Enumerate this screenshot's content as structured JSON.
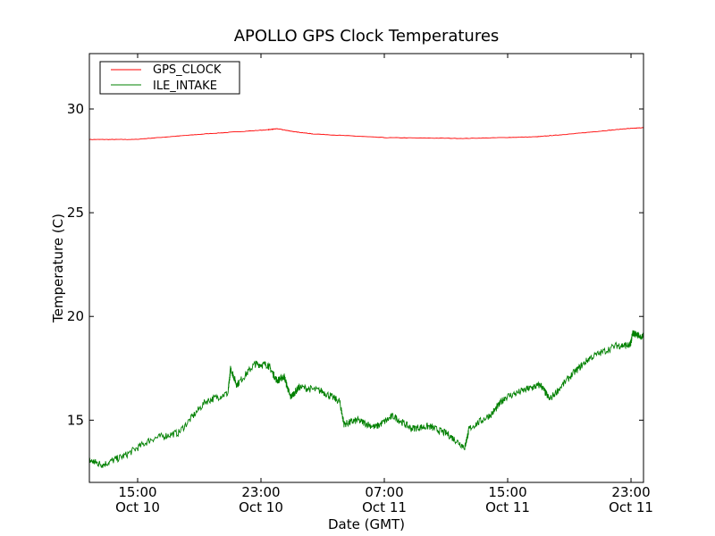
{
  "chart_data": {
    "type": "line",
    "title": "APOLLO GPS Clock Temperatures",
    "xlabel": "Date (GMT)",
    "ylabel": "Temperature (C)",
    "x_units": "hours since Oct 10 00:00 GMT",
    "xlim": [
      11.87,
      47.81
    ],
    "ylim": [
      12.0,
      32.67
    ],
    "grid": false,
    "legend_position": "top-left",
    "x_ticks": [
      {
        "value": 15,
        "time": "15:00",
        "date": "Oct 10"
      },
      {
        "value": 23,
        "time": "23:00",
        "date": "Oct 10"
      },
      {
        "value": 31,
        "time": "07:00",
        "date": "Oct 11"
      },
      {
        "value": 39,
        "time": "15:00",
        "date": "Oct 11"
      },
      {
        "value": 47,
        "time": "23:00",
        "date": "Oct 11"
      }
    ],
    "y_ticks": [
      {
        "value": 15,
        "label": "15"
      },
      {
        "value": 20,
        "label": "20"
      },
      {
        "value": 25,
        "label": "25"
      },
      {
        "value": 30,
        "label": "30"
      }
    ],
    "series": [
      {
        "name": "GPS_CLOCK",
        "color": "#ff0000",
        "x": [
          11.87,
          14.77,
          19.41,
          23.46,
          24.04,
          25.2,
          26.36,
          31.0,
          36.22,
          40.86,
          43.17,
          46.65,
          47.81
        ],
        "y": [
          28.53,
          28.53,
          28.8,
          29.0,
          29.05,
          28.9,
          28.8,
          28.62,
          28.58,
          28.66,
          28.8,
          29.05,
          29.1
        ]
      },
      {
        "name": "ILE_INTAKE",
        "color": "#008000",
        "x": [
          11.87,
          12.74,
          14.19,
          15.93,
          17.67,
          19.41,
          20.86,
          21.03,
          21.43,
          22.59,
          23.46,
          24.04,
          24.51,
          24.91,
          25.49,
          26.94,
          28.1,
          28.39,
          29.26,
          30.42,
          31.58,
          32.74,
          33.9,
          35.06,
          36.22,
          36.51,
          37.96,
          38.83,
          40.28,
          41.14,
          41.72,
          43.17,
          44.33,
          46.07,
          46.94,
          47.12,
          47.81
        ],
        "y": [
          13.06,
          12.85,
          13.3,
          14.1,
          14.4,
          15.9,
          16.3,
          17.5,
          16.7,
          17.7,
          17.67,
          16.9,
          17.1,
          16.1,
          16.6,
          16.4,
          15.9,
          14.8,
          15.0,
          14.66,
          15.2,
          14.6,
          14.7,
          14.35,
          13.7,
          14.6,
          15.3,
          16.1,
          16.5,
          16.7,
          16.0,
          17.2,
          18.0,
          18.6,
          18.6,
          19.2,
          19.0
        ]
      }
    ]
  }
}
